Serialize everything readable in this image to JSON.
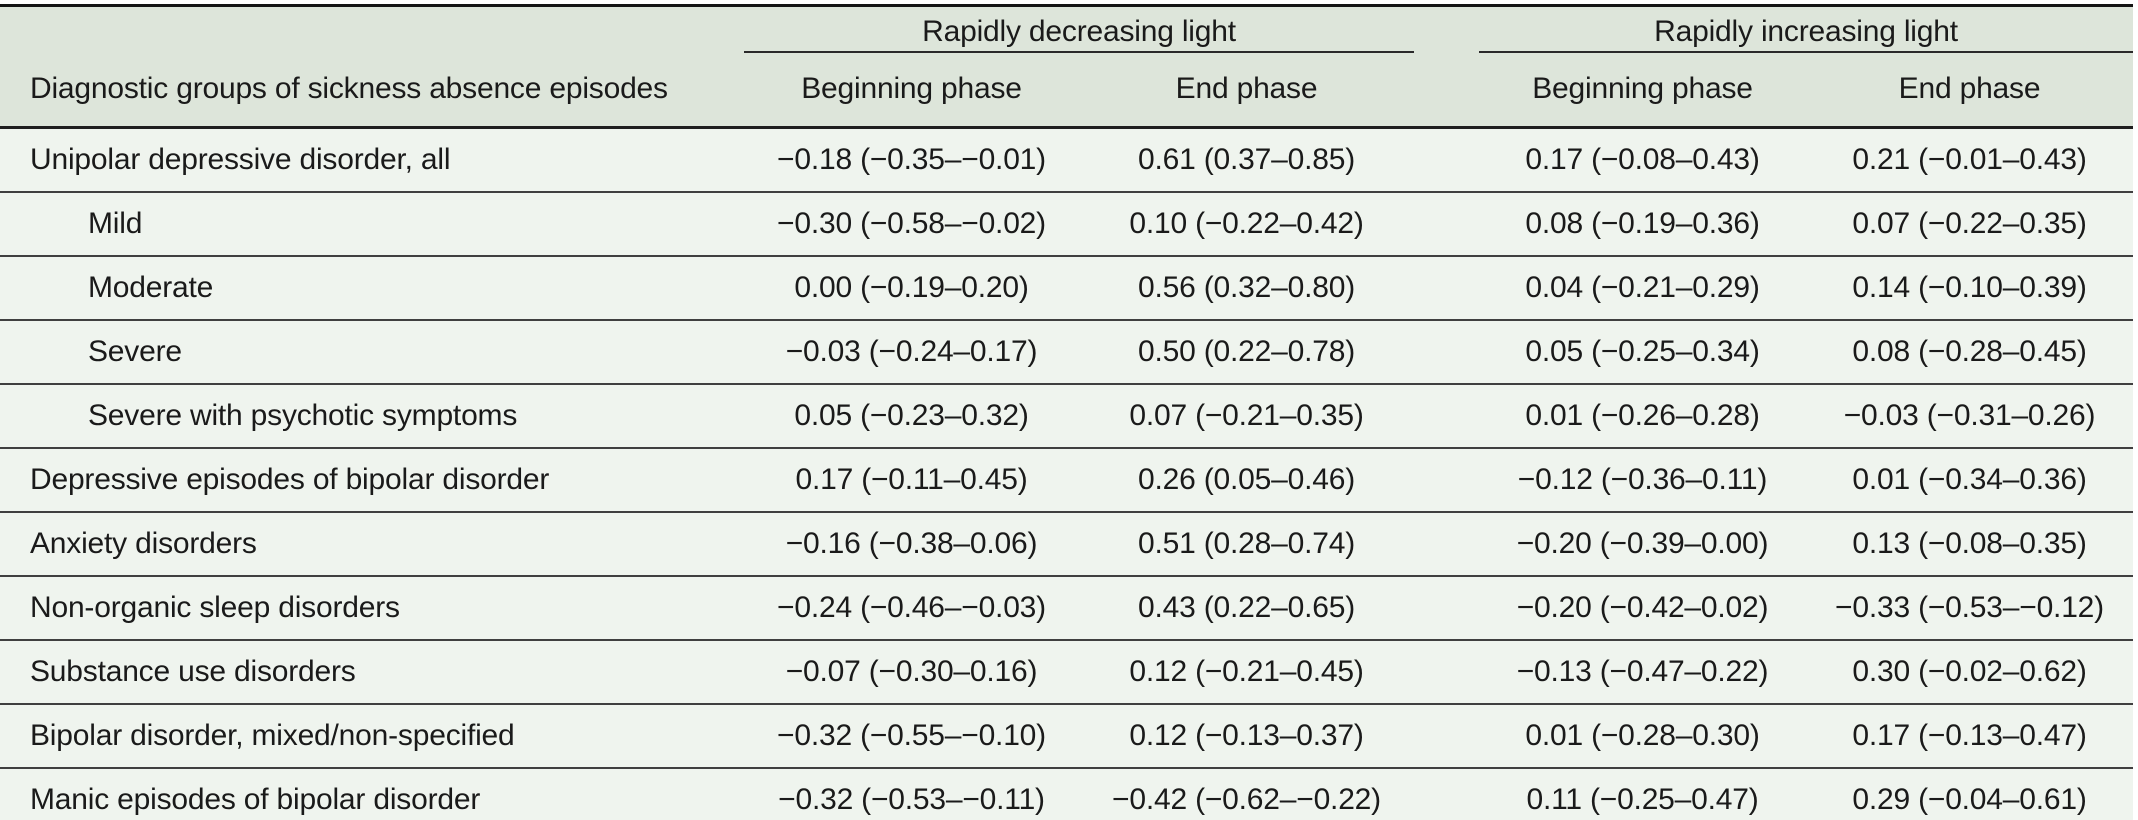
{
  "table": {
    "col1_header": "Diagnostic groups of sickness absence episodes",
    "groups": [
      {
        "label": "Rapidly decreasing light",
        "columns": [
          "Beginning phase",
          "End phase"
        ]
      },
      {
        "label": "Rapidly increasing light",
        "columns": [
          "Beginning phase",
          "End phase"
        ]
      }
    ],
    "rows": [
      {
        "label": "Unipolar depressive disorder, all",
        "indent": false,
        "values": [
          "−0.18 (−0.35–−0.01)",
          "0.61 (0.37–0.85)",
          "0.17 (−0.08–0.43)",
          "0.21 (−0.01–0.43)"
        ]
      },
      {
        "label": "Mild",
        "indent": true,
        "values": [
          "−0.30 (−0.58–−0.02)",
          "0.10 (−0.22–0.42)",
          "0.08 (−0.19–0.36)",
          "0.07 (−0.22–0.35)"
        ]
      },
      {
        "label": "Moderate",
        "indent": true,
        "values": [
          "0.00 (−0.19–0.20)",
          "0.56 (0.32–0.80)",
          "0.04 (−0.21–0.29)",
          "0.14 (−0.10–0.39)"
        ]
      },
      {
        "label": "Severe",
        "indent": true,
        "values": [
          "−0.03 (−0.24–0.17)",
          "0.50 (0.22–0.78)",
          "0.05 (−0.25–0.34)",
          "0.08 (−0.28–0.45)"
        ]
      },
      {
        "label": "Severe with psychotic symptoms",
        "indent": true,
        "values": [
          "0.05 (−0.23–0.32)",
          "0.07 (−0.21–0.35)",
          "0.01 (−0.26–0.28)",
          "−0.03 (−0.31–0.26)"
        ]
      },
      {
        "label": "Depressive episodes of bipolar disorder",
        "indent": false,
        "values": [
          "0.17 (−0.11–0.45)",
          "0.26 (0.05–0.46)",
          "−0.12 (−0.36–0.11)",
          "0.01 (−0.34–0.36)"
        ]
      },
      {
        "label": "Anxiety disorders",
        "indent": false,
        "values": [
          "−0.16 (−0.38–0.06)",
          "0.51 (0.28–0.74)",
          "−0.20 (−0.39–0.00)",
          "0.13 (−0.08–0.35)"
        ]
      },
      {
        "label": "Non-organic sleep disorders",
        "indent": false,
        "values": [
          "−0.24 (−0.46–−0.03)",
          "0.43 (0.22–0.65)",
          "−0.20 (−0.42–0.02)",
          "−0.33 (−0.53–−0.12)"
        ]
      },
      {
        "label": "Substance use disorders",
        "indent": false,
        "values": [
          "−0.07 (−0.30–0.16)",
          "0.12 (−0.21–0.45)",
          "−0.13 (−0.47–0.22)",
          "0.30 (−0.02–0.62)"
        ]
      },
      {
        "label": "Bipolar disorder, mixed/non-specified",
        "indent": false,
        "values": [
          "−0.32 (−0.55–−0.10)",
          "0.12 (−0.13–0.37)",
          "0.01 (−0.28–0.30)",
          "0.17 (−0.13–0.47)"
        ]
      },
      {
        "label": "Manic episodes of bipolar disorder",
        "indent": false,
        "values": [
          "−0.32 (−0.53–−0.11)",
          "−0.42 (−0.62–−0.22)",
          "0.11 (−0.25–0.47)",
          "0.29 (−0.04–0.61)"
        ]
      }
    ],
    "colors": {
      "header_bg": "#dde5da",
      "body_bg": "#eff4ee",
      "border_dark": "#141414",
      "row_line": "#3f3f3f",
      "text": "#1a1a1a"
    }
  }
}
